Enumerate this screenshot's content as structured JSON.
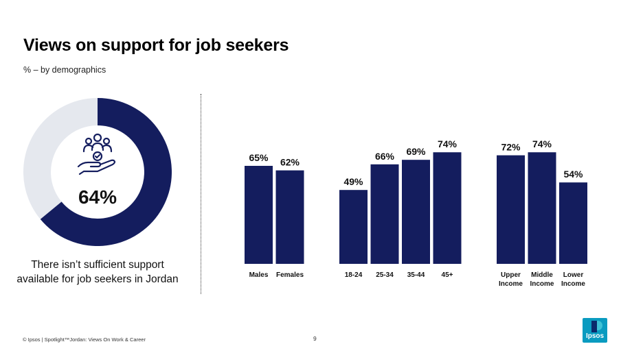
{
  "header": {
    "title": "Views on support for job seekers",
    "subtitle": "% – by demographics"
  },
  "donut": {
    "value_label": "64%",
    "fraction": 0.64,
    "caption": "There isn’t sufficient support available for job seekers in Jordan",
    "icon": "hand-holding-people-icon"
  },
  "colors": {
    "navy": "#141d5e",
    "light_gray": "#e5e8ee"
  },
  "chart_data": {
    "type": "bar",
    "groups": [
      {
        "categories": [
          "Males",
          "Females"
        ],
        "values": [
          65,
          62
        ]
      },
      {
        "categories": [
          "18-24",
          "25-34",
          "35-44",
          "45+"
        ],
        "values": [
          49,
          66,
          69,
          74
        ]
      },
      {
        "categories": [
          "Upper Income",
          "Middle Income",
          "Lower Income"
        ],
        "values": [
          72,
          74,
          54
        ]
      }
    ],
    "value_suffix": "%",
    "ylim": [
      0,
      100
    ]
  },
  "footer": {
    "source": "© Ipsos | Spotlight™Jordan: Views On Work & Career",
    "page": "9",
    "logo_text": "Ipsos"
  }
}
